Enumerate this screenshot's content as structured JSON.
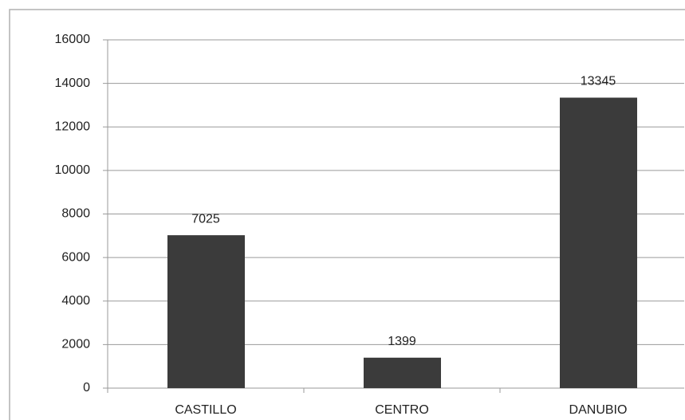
{
  "chart_data": {
    "type": "bar",
    "categories": [
      "CASTILLO",
      "CENTRO",
      "DANUBIO"
    ],
    "values": [
      7025,
      1399,
      13345
    ],
    "color": "#3b3b3b",
    "ylim": [
      0,
      16000
    ],
    "yticks": [
      0,
      2000,
      4000,
      6000,
      8000,
      10000,
      12000,
      14000,
      16000
    ],
    "grid": true
  }
}
